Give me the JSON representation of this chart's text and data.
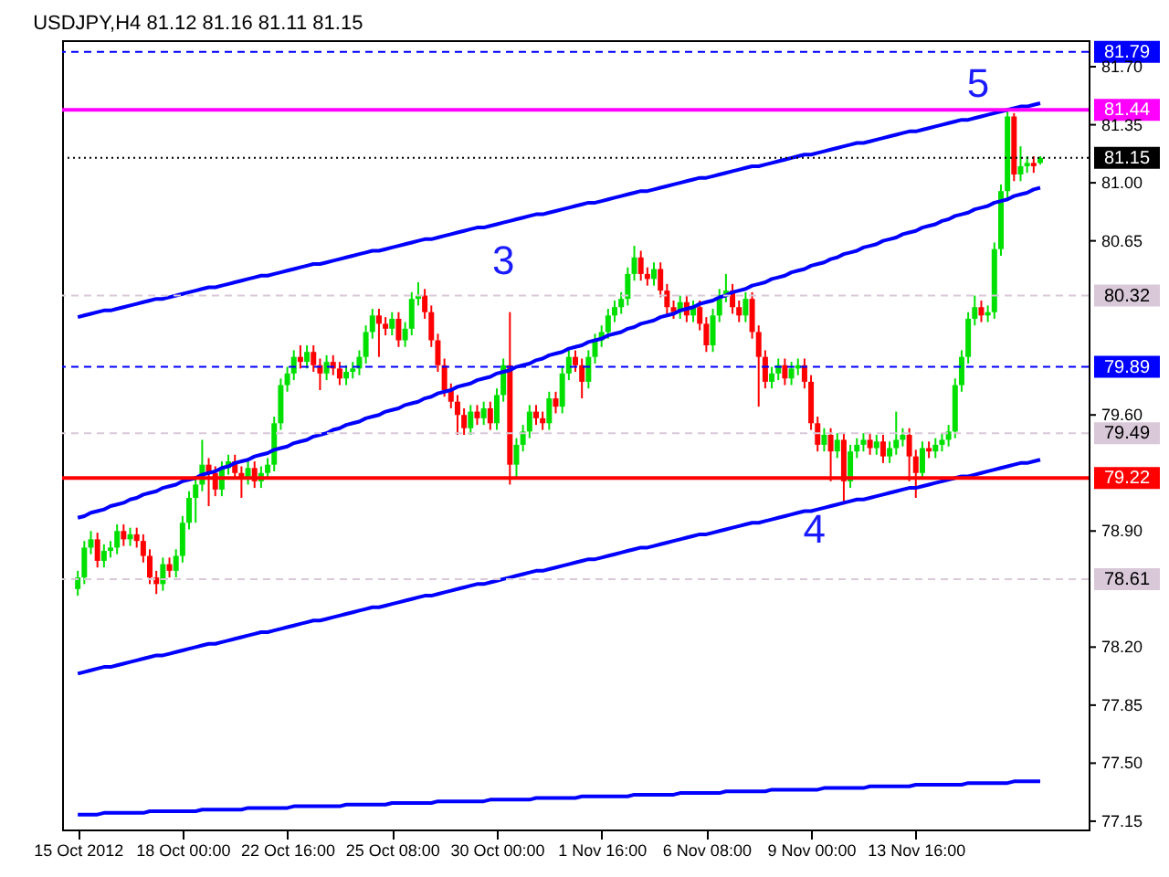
{
  "chart_data": {
    "type": "candlestick",
    "title": "USDJPY,H4  81.12 81.16 81.11 81.15",
    "categories": [
      "15 Oct 2012",
      null,
      null,
      null,
      null,
      null,
      null,
      null,
      null,
      null,
      null,
      null,
      null,
      null,
      null,
      null,
      "18 Oct 00:00",
      null,
      null,
      null,
      null,
      null,
      null,
      null,
      null,
      null,
      null,
      null,
      null,
      null,
      null,
      null,
      "22 Oct 16:00",
      null,
      null,
      null,
      null,
      null,
      null,
      null,
      null,
      null,
      null,
      null,
      null,
      null,
      null,
      null,
      "25 Oct 08:00",
      null,
      null,
      null,
      null,
      null,
      null,
      null,
      null,
      null,
      null,
      null,
      null,
      null,
      null,
      null,
      "30 Oct 00:00",
      null,
      null,
      null,
      null,
      null,
      null,
      null,
      null,
      null,
      null,
      null,
      null,
      null,
      null,
      null,
      "1 Nov 16:00",
      null,
      null,
      null,
      null,
      null,
      null,
      null,
      null,
      null,
      null,
      null,
      null,
      null,
      null,
      null,
      "6 Nov 08:00",
      null,
      null,
      null,
      null,
      null,
      null,
      null,
      null,
      null,
      null,
      null,
      null,
      null,
      null,
      null,
      "9 Nov 00:00",
      null,
      null,
      null,
      null,
      null,
      null,
      null,
      null,
      null,
      null,
      null,
      null,
      null,
      null,
      null,
      "13 Nov 16:00",
      null,
      null,
      null,
      null,
      null,
      null,
      null,
      null,
      null,
      null,
      null,
      null,
      null,
      null,
      null,
      null,
      null,
      null,
      null
    ],
    "ohlc": [
      [
        78.55,
        78.66,
        78.51,
        78.62
      ],
      [
        78.62,
        78.84,
        78.58,
        78.8
      ],
      [
        78.8,
        78.9,
        78.76,
        78.85
      ],
      [
        78.85,
        78.89,
        78.68,
        78.72
      ],
      [
        78.72,
        78.82,
        78.68,
        78.78
      ],
      [
        78.78,
        78.84,
        78.74,
        78.8
      ],
      [
        78.8,
        78.94,
        78.76,
        78.9
      ],
      [
        78.9,
        78.94,
        78.81,
        78.85
      ],
      [
        78.85,
        78.92,
        78.81,
        78.88
      ],
      [
        78.88,
        78.92,
        78.8,
        78.84
      ],
      [
        78.84,
        78.88,
        78.71,
        78.75
      ],
      [
        78.75,
        78.79,
        78.58,
        78.62
      ],
      [
        78.62,
        78.66,
        78.52,
        78.58
      ],
      [
        78.58,
        78.74,
        78.54,
        78.7
      ],
      [
        78.7,
        78.74,
        78.62,
        78.66
      ],
      [
        78.66,
        78.79,
        78.62,
        78.75
      ],
      [
        78.75,
        78.99,
        78.71,
        78.95
      ],
      [
        78.95,
        79.14,
        78.91,
        79.1
      ],
      [
        79.1,
        79.22,
        78.95,
        79.18
      ],
      [
        79.18,
        79.45,
        79.14,
        79.3
      ],
      [
        79.3,
        79.34,
        79.05,
        79.25
      ],
      [
        79.25,
        79.29,
        79.11,
        79.15
      ],
      [
        79.15,
        79.32,
        79.11,
        79.28
      ],
      [
        79.28,
        79.36,
        79.24,
        79.32
      ],
      [
        79.32,
        79.36,
        79.21,
        79.25
      ],
      [
        79.25,
        79.29,
        79.1,
        79.22
      ],
      [
        79.22,
        79.32,
        79.18,
        79.28
      ],
      [
        79.28,
        79.32,
        79.16,
        79.2
      ],
      [
        79.2,
        79.29,
        79.16,
        79.25
      ],
      [
        79.25,
        79.34,
        79.21,
        79.3
      ],
      [
        79.3,
        79.59,
        79.26,
        79.55
      ],
      [
        79.55,
        79.82,
        79.51,
        79.78
      ],
      [
        79.78,
        79.89,
        79.74,
        79.85
      ],
      [
        79.85,
        79.99,
        79.81,
        79.95
      ],
      [
        79.95,
        80.02,
        79.88,
        79.92
      ],
      [
        79.92,
        80.02,
        79.88,
        79.98
      ],
      [
        79.98,
        80.02,
        79.86,
        79.9
      ],
      [
        79.9,
        79.94,
        79.75,
        79.85
      ],
      [
        79.85,
        79.96,
        79.81,
        79.92
      ],
      [
        79.92,
        79.96,
        79.84,
        79.88
      ],
      [
        79.88,
        79.92,
        79.78,
        79.82
      ],
      [
        79.82,
        79.9,
        79.78,
        79.86
      ],
      [
        79.86,
        79.92,
        79.82,
        79.88
      ],
      [
        79.88,
        79.99,
        79.84,
        79.95
      ],
      [
        79.95,
        80.14,
        79.91,
        80.1
      ],
      [
        80.1,
        80.24,
        80.06,
        80.2
      ],
      [
        80.2,
        80.24,
        79.95,
        80.15
      ],
      [
        80.15,
        80.19,
        80.08,
        80.12
      ],
      [
        80.12,
        80.22,
        80.08,
        80.18
      ],
      [
        80.18,
        80.22,
        80.01,
        80.05
      ],
      [
        80.05,
        80.16,
        80.01,
        80.12
      ],
      [
        80.12,
        80.34,
        80.08,
        80.3
      ],
      [
        80.3,
        80.4,
        80.26,
        80.32
      ],
      [
        80.32,
        80.36,
        80.18,
        80.22
      ],
      [
        80.22,
        80.26,
        80.01,
        80.05
      ],
      [
        80.05,
        80.09,
        79.86,
        79.9
      ],
      [
        79.9,
        79.94,
        79.71,
        79.75
      ],
      [
        79.75,
        79.79,
        79.64,
        79.68
      ],
      [
        79.68,
        79.72,
        79.48,
        79.6
      ],
      [
        79.6,
        79.64,
        79.48,
        79.52
      ],
      [
        79.52,
        79.66,
        79.48,
        79.62
      ],
      [
        79.62,
        79.66,
        79.54,
        79.58
      ],
      [
        79.58,
        79.68,
        79.54,
        79.64
      ],
      [
        79.64,
        79.68,
        79.51,
        79.55
      ],
      [
        79.55,
        79.76,
        79.51,
        79.72
      ],
      [
        79.72,
        79.94,
        79.68,
        79.9
      ],
      [
        79.9,
        80.22,
        79.18,
        79.3
      ],
      [
        79.3,
        79.46,
        79.22,
        79.42
      ],
      [
        79.42,
        79.54,
        79.38,
        79.5
      ],
      [
        79.5,
        79.66,
        79.46,
        79.62
      ],
      [
        79.62,
        79.66,
        79.54,
        79.58
      ],
      [
        79.58,
        79.62,
        79.51,
        79.55
      ],
      [
        79.55,
        79.74,
        79.51,
        79.7
      ],
      [
        79.7,
        79.74,
        79.61,
        79.65
      ],
      [
        79.65,
        79.89,
        79.61,
        79.85
      ],
      [
        79.85,
        79.99,
        79.81,
        79.95
      ],
      [
        79.95,
        79.99,
        79.86,
        79.9
      ],
      [
        79.9,
        79.94,
        79.7,
        79.8
      ],
      [
        79.8,
        79.99,
        79.76,
        79.95
      ],
      [
        79.95,
        80.09,
        79.91,
        80.05
      ],
      [
        80.05,
        80.14,
        80.01,
        80.1
      ],
      [
        80.1,
        80.24,
        80.06,
        80.2
      ],
      [
        80.2,
        80.29,
        80.16,
        80.25
      ],
      [
        80.25,
        80.34,
        80.21,
        80.3
      ],
      [
        80.3,
        80.49,
        80.26,
        80.45
      ],
      [
        80.45,
        80.62,
        80.41,
        80.55
      ],
      [
        80.55,
        80.59,
        80.41,
        80.45
      ],
      [
        80.45,
        80.49,
        80.38,
        80.42
      ],
      [
        80.42,
        80.52,
        80.38,
        80.48
      ],
      [
        80.48,
        80.52,
        80.31,
        80.35
      ],
      [
        80.35,
        80.39,
        80.21,
        80.25
      ],
      [
        80.25,
        80.29,
        80.18,
        80.22
      ],
      [
        80.22,
        80.32,
        80.18,
        80.28
      ],
      [
        80.28,
        80.32,
        80.16,
        80.2
      ],
      [
        80.2,
        80.29,
        80.16,
        80.25
      ],
      [
        80.25,
        80.29,
        80.11,
        80.15
      ],
      [
        80.15,
        80.19,
        79.98,
        80.02
      ],
      [
        80.02,
        80.24,
        79.98,
        80.2
      ],
      [
        80.2,
        80.36,
        80.16,
        80.32
      ],
      [
        80.32,
        80.45,
        80.28,
        80.35
      ],
      [
        80.35,
        80.39,
        80.21,
        80.25
      ],
      [
        80.25,
        80.29,
        80.16,
        80.2
      ],
      [
        80.2,
        80.34,
        80.16,
        80.3
      ],
      [
        80.3,
        80.34,
        80.06,
        80.1
      ],
      [
        80.1,
        80.14,
        79.65,
        79.95
      ],
      [
        79.95,
        79.99,
        79.76,
        79.8
      ],
      [
        79.8,
        79.89,
        79.76,
        79.85
      ],
      [
        79.85,
        79.94,
        79.81,
        79.9
      ],
      [
        79.9,
        79.94,
        79.78,
        79.82
      ],
      [
        79.82,
        79.92,
        79.78,
        79.88
      ],
      [
        79.88,
        79.94,
        79.84,
        79.9
      ],
      [
        79.9,
        79.94,
        79.76,
        79.8
      ],
      [
        79.8,
        79.84,
        79.51,
        79.55
      ],
      [
        79.55,
        79.59,
        79.38,
        79.42
      ],
      [
        79.42,
        79.52,
        79.38,
        79.48
      ],
      [
        79.48,
        79.52,
        79.2,
        79.38
      ],
      [
        79.38,
        79.49,
        79.34,
        79.45
      ],
      [
        79.45,
        79.49,
        79.06,
        79.2
      ],
      [
        79.2,
        79.42,
        79.16,
        79.38
      ],
      [
        79.38,
        79.46,
        79.34,
        79.42
      ],
      [
        79.42,
        79.49,
        79.38,
        79.45
      ],
      [
        79.45,
        79.49,
        79.36,
        79.4
      ],
      [
        79.4,
        79.48,
        79.36,
        79.44
      ],
      [
        79.44,
        79.48,
        79.31,
        79.35
      ],
      [
        79.35,
        79.44,
        79.31,
        79.4
      ],
      [
        79.4,
        79.62,
        79.36,
        79.45
      ],
      [
        79.45,
        79.52,
        79.41,
        79.48
      ],
      [
        79.48,
        79.52,
        79.2,
        79.35
      ],
      [
        79.35,
        79.39,
        79.1,
        79.25
      ],
      [
        79.25,
        79.44,
        79.21,
        79.4
      ],
      [
        79.4,
        79.44,
        79.34,
        79.38
      ],
      [
        79.38,
        79.46,
        79.34,
        79.42
      ],
      [
        79.42,
        79.49,
        79.38,
        79.45
      ],
      [
        79.45,
        79.54,
        79.41,
        79.5
      ],
      [
        79.5,
        79.82,
        79.46,
        79.78
      ],
      [
        79.78,
        79.99,
        79.74,
        79.95
      ],
      [
        79.95,
        80.22,
        79.91,
        80.18
      ],
      [
        80.18,
        80.32,
        80.14,
        80.25
      ],
      [
        80.25,
        80.29,
        80.16,
        80.2
      ],
      [
        80.2,
        80.26,
        80.16,
        80.22
      ],
      [
        80.22,
        80.64,
        80.18,
        80.6
      ],
      [
        80.6,
        80.99,
        80.56,
        80.95
      ],
      [
        80.95,
        81.44,
        80.91,
        81.4
      ],
      [
        81.4,
        81.42,
        81.01,
        81.05
      ],
      [
        81.05,
        81.22,
        81.01,
        81.1
      ],
      [
        81.1,
        81.16,
        81.06,
        81.12
      ],
      [
        81.12,
        81.16,
        81.06,
        81.1
      ],
      [
        81.12,
        81.16,
        81.11,
        81.15
      ]
    ],
    "series": [
      {
        "type": "line",
        "color": "#0000ff",
        "values": [
          80.19,
          80.2,
          80.21,
          80.22,
          80.23,
          80.23,
          80.24,
          80.25,
          80.26,
          80.27,
          80.28,
          80.29,
          80.3,
          80.3,
          80.31,
          80.32,
          80.33,
          80.34,
          80.35,
          80.36,
          80.37,
          80.37,
          80.38,
          80.39,
          80.4,
          80.41,
          80.42,
          80.43,
          80.44,
          80.44,
          80.45,
          80.46,
          80.47,
          80.48,
          80.49,
          80.5,
          80.51,
          80.51,
          80.52,
          80.53,
          80.54,
          80.55,
          80.56,
          80.57,
          80.58,
          80.59,
          80.59,
          80.6,
          80.61,
          80.62,
          80.63,
          80.64,
          80.65,
          80.66,
          80.66,
          80.67,
          80.68,
          80.69,
          80.7,
          80.71,
          80.72,
          80.73,
          80.73,
          80.74,
          80.75,
          80.76,
          80.77,
          80.78,
          80.79,
          80.8,
          80.81,
          80.81,
          80.82,
          80.83,
          80.84,
          80.85,
          80.86,
          80.87,
          80.88,
          80.88,
          80.89,
          80.9,
          80.91,
          80.92,
          80.93,
          80.94,
          80.95,
          80.95,
          80.96,
          80.97,
          80.98,
          80.99,
          81.0,
          81.01,
          81.02,
          81.03,
          81.03,
          81.04,
          81.05,
          81.06,
          81.07,
          81.08,
          81.09,
          81.1,
          81.1,
          81.11,
          81.12,
          81.13,
          81.14,
          81.15,
          81.16,
          81.17,
          81.17,
          81.18,
          81.19,
          81.2,
          81.21,
          81.22,
          81.23,
          81.24,
          81.24,
          81.25,
          81.26,
          81.27,
          81.28,
          81.29,
          81.3,
          81.31,
          81.31,
          81.32,
          81.33,
          81.34,
          81.35,
          81.36,
          81.37,
          81.38,
          81.38,
          81.39,
          81.4,
          81.41,
          81.42,
          81.43,
          81.44,
          81.45,
          81.46,
          81.46,
          81.47,
          81.48
        ]
      },
      {
        "type": "line",
        "color": "#0000ff",
        "values": [
          78.04,
          78.05,
          78.06,
          78.07,
          78.08,
          78.08,
          78.09,
          78.1,
          78.11,
          78.12,
          78.13,
          78.14,
          78.15,
          78.15,
          78.16,
          78.17,
          78.18,
          78.19,
          78.2,
          78.21,
          78.22,
          78.22,
          78.23,
          78.24,
          78.25,
          78.26,
          78.27,
          78.28,
          78.29,
          78.29,
          78.3,
          78.31,
          78.32,
          78.33,
          78.34,
          78.35,
          78.36,
          78.36,
          78.37,
          78.38,
          78.39,
          78.4,
          78.41,
          78.42,
          78.43,
          78.44,
          78.44,
          78.45,
          78.46,
          78.47,
          78.48,
          78.49,
          78.5,
          78.51,
          78.51,
          78.52,
          78.53,
          78.54,
          78.55,
          78.56,
          78.57,
          78.58,
          78.58,
          78.59,
          78.6,
          78.61,
          78.62,
          78.63,
          78.64,
          78.65,
          78.66,
          78.66,
          78.67,
          78.68,
          78.69,
          78.7,
          78.71,
          78.72,
          78.73,
          78.73,
          78.74,
          78.75,
          78.76,
          78.77,
          78.78,
          78.79,
          78.8,
          78.8,
          78.81,
          78.82,
          78.83,
          78.84,
          78.85,
          78.86,
          78.87,
          78.88,
          78.88,
          78.89,
          78.9,
          78.91,
          78.92,
          78.93,
          78.94,
          78.95,
          78.95,
          78.96,
          78.97,
          78.98,
          78.99,
          79.0,
          79.01,
          79.02,
          79.02,
          79.03,
          79.04,
          79.05,
          79.06,
          79.07,
          79.08,
          79.09,
          79.09,
          79.1,
          79.11,
          79.12,
          79.13,
          79.14,
          79.15,
          79.16,
          79.16,
          79.17,
          79.18,
          79.19,
          79.2,
          79.21,
          79.22,
          79.23,
          79.23,
          79.24,
          79.25,
          79.26,
          79.27,
          79.28,
          79.29,
          79.3,
          79.31,
          79.31,
          79.32,
          79.33
        ]
      },
      {
        "type": "line",
        "color": "#0000ff",
        "values": [
          78.98,
          78.99,
          79.01,
          79.02,
          79.03,
          79.05,
          79.06,
          79.07,
          79.09,
          79.1,
          79.12,
          79.13,
          79.14,
          79.16,
          79.17,
          79.18,
          79.2,
          79.21,
          79.22,
          79.24,
          79.25,
          79.26,
          79.28,
          79.29,
          79.31,
          79.32,
          79.33,
          79.35,
          79.36,
          79.37,
          79.39,
          79.4,
          79.41,
          79.43,
          79.44,
          79.45,
          79.47,
          79.48,
          79.49,
          79.51,
          79.52,
          79.54,
          79.55,
          79.56,
          79.58,
          79.59,
          79.6,
          79.62,
          79.63,
          79.64,
          79.66,
          79.67,
          79.68,
          79.7,
          79.71,
          79.73,
          79.74,
          79.75,
          79.77,
          79.78,
          79.79,
          79.81,
          79.82,
          79.83,
          79.85,
          79.86,
          79.87,
          79.89,
          79.9,
          79.91,
          79.93,
          79.94,
          79.96,
          79.97,
          79.98,
          80.0,
          80.01,
          80.02,
          80.04,
          80.05,
          80.06,
          80.08,
          80.09,
          80.1,
          80.12,
          80.13,
          80.15,
          80.16,
          80.17,
          80.19,
          80.2,
          80.21,
          80.23,
          80.24,
          80.25,
          80.27,
          80.28,
          80.29,
          80.31,
          80.32,
          80.34,
          80.35,
          80.36,
          80.38,
          80.39,
          80.4,
          80.42,
          80.43,
          80.44,
          80.46,
          80.47,
          80.48,
          80.5,
          80.51,
          80.52,
          80.54,
          80.55,
          80.57,
          80.58,
          80.59,
          80.61,
          80.62,
          80.63,
          80.65,
          80.66,
          80.67,
          80.69,
          80.7,
          80.71,
          80.73,
          80.74,
          80.75,
          80.77,
          80.78,
          80.8,
          80.81,
          80.82,
          80.84,
          80.85,
          80.86,
          80.88,
          80.89,
          80.9,
          80.92,
          80.93,
          80.94,
          80.96,
          80.97
        ]
      },
      {
        "type": "line",
        "color": "#0000ff",
        "values": [
          77.19,
          77.19,
          77.19,
          77.19,
          77.2,
          77.2,
          77.2,
          77.2,
          77.2,
          77.2,
          77.2,
          77.21,
          77.21,
          77.21,
          77.21,
          77.21,
          77.21,
          77.21,
          77.21,
          77.22,
          77.22,
          77.22,
          77.22,
          77.22,
          77.22,
          77.22,
          77.23,
          77.23,
          77.23,
          77.23,
          77.23,
          77.23,
          77.23,
          77.24,
          77.24,
          77.24,
          77.24,
          77.24,
          77.24,
          77.24,
          77.24,
          77.25,
          77.25,
          77.25,
          77.25,
          77.25,
          77.25,
          77.25,
          77.26,
          77.26,
          77.26,
          77.26,
          77.26,
          77.26,
          77.26,
          77.27,
          77.27,
          77.27,
          77.27,
          77.27,
          77.27,
          77.27,
          77.27,
          77.28,
          77.28,
          77.28,
          77.28,
          77.28,
          77.28,
          77.28,
          77.29,
          77.29,
          77.29,
          77.29,
          77.29,
          77.29,
          77.29,
          77.3,
          77.3,
          77.3,
          77.3,
          77.3,
          77.3,
          77.3,
          77.3,
          77.31,
          77.31,
          77.31,
          77.31,
          77.31,
          77.31,
          77.31,
          77.32,
          77.32,
          77.32,
          77.32,
          77.32,
          77.32,
          77.32,
          77.33,
          77.33,
          77.33,
          77.33,
          77.33,
          77.33,
          77.33,
          77.34,
          77.34,
          77.34,
          77.34,
          77.34,
          77.34,
          77.34,
          77.34,
          77.35,
          77.35,
          77.35,
          77.35,
          77.35,
          77.35,
          77.35,
          77.36,
          77.36,
          77.36,
          77.36,
          77.36,
          77.36,
          77.36,
          77.37,
          77.37,
          77.37,
          77.37,
          77.37,
          77.37,
          77.37,
          77.37,
          77.38,
          77.38,
          77.38,
          77.38,
          77.38,
          77.38,
          77.38,
          77.39,
          77.39,
          77.39,
          77.39,
          77.39
        ]
      }
    ],
    "ylim": [
      77.1,
      81.86
    ],
    "yticks": [
      {
        "value": 77.15,
        "label": "77.15"
      },
      {
        "value": 77.5,
        "label": "77.50"
      },
      {
        "value": 77.85,
        "label": "77.85"
      },
      {
        "value": 78.2,
        "label": "78.20"
      },
      {
        "value": 78.9,
        "label": "78.90"
      },
      {
        "value": 79.6,
        "label": "79.60"
      },
      {
        "value": 80.65,
        "label": "80.65"
      },
      {
        "value": 81.0,
        "label": "81.00"
      },
      {
        "value": 81.35,
        "label": "81.35"
      },
      {
        "value": 81.7,
        "label": "81.70"
      }
    ],
    "ref_lines": [
      {
        "axis": "y",
        "value": 81.79,
        "label": "81.79",
        "color": "#0000ff",
        "line_style": "dashed"
      },
      {
        "axis": "y",
        "value": 81.44,
        "label": "81.44",
        "color": "#ff00ff",
        "line_style": "solid"
      },
      {
        "axis": "y",
        "value": 81.15,
        "label": "81.15",
        "color": "#000000",
        "line_style": "dotted"
      },
      {
        "axis": "y",
        "value": 80.32,
        "label": "80.32",
        "color": "#d8c8d8",
        "line_style": "dashed"
      },
      {
        "axis": "y",
        "value": 79.89,
        "label": "79.89",
        "color": "#0000ff",
        "line_style": "dashed"
      },
      {
        "axis": "y",
        "value": 79.49,
        "label": "79.49",
        "color": "#d8c8d8",
        "line_style": "dashed"
      },
      {
        "axis": "y",
        "value": 79.22,
        "label": "79.22",
        "color": "#ff0000",
        "line_style": "solid"
      },
      {
        "axis": "y",
        "value": 78.61,
        "label": "78.61",
        "color": "#d8c8d8",
        "line_style": "dashed"
      }
    ],
    "annotations": [
      "3",
      {
        "text": "4",
        "y": 79.06
      },
      {
        "text": "5",
        "y": 81.44
      }
    ],
    "grid": false
  }
}
